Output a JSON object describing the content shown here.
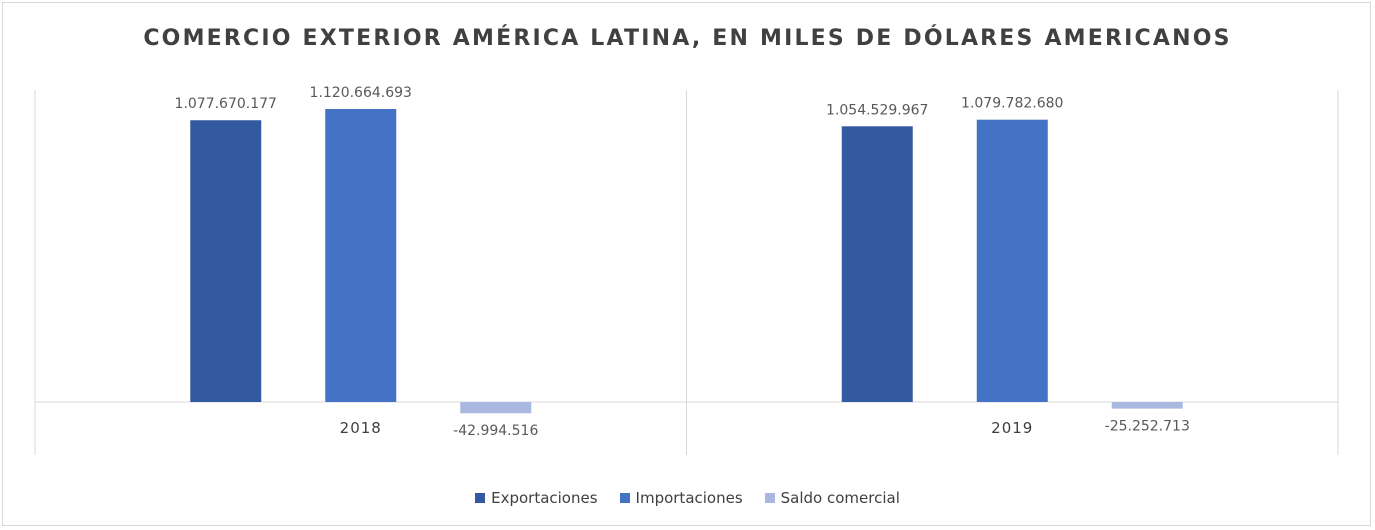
{
  "colors": {
    "exportaciones": "#335aa0",
    "importaciones": "#4472c4",
    "saldo": "#a9b8e0",
    "axis": "#d9d9d9"
  },
  "chart_data": {
    "type": "bar",
    "title": "COMERCIO EXTERIOR AMÉRICA LATINA, EN MILES DE DÓLARES AMERICANOS",
    "categories": [
      "2018",
      "2019"
    ],
    "series": [
      {
        "name": "Exportaciones",
        "values": [
          1077670177,
          1054529967
        ],
        "labels": [
          "1.077.670.177",
          "1.054.529.967"
        ]
      },
      {
        "name": "Importaciones",
        "values": [
          1120664693,
          1079782680
        ],
        "labels": [
          "1.120.664.693",
          "1.079.782.680"
        ]
      },
      {
        "name": "Saldo comercial",
        "values": [
          -42994516,
          -25252713
        ],
        "labels": [
          "-42.994.516",
          "-25.252.713"
        ]
      }
    ],
    "grid": false,
    "legend": "bottom"
  }
}
